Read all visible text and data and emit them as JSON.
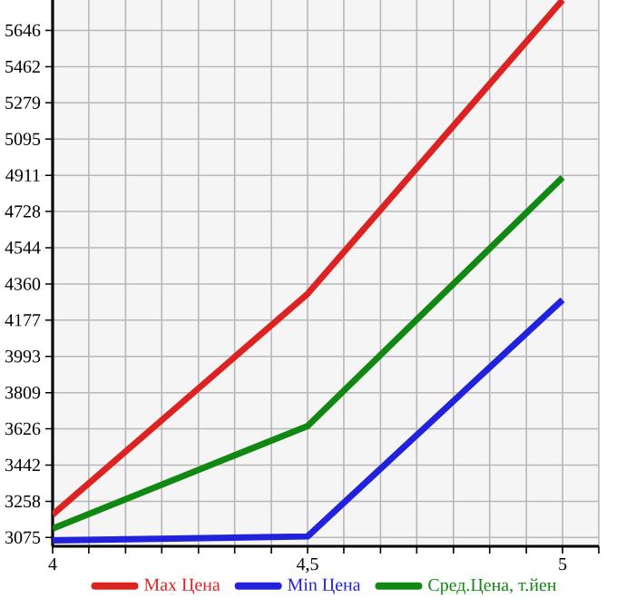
{
  "chart_data": {
    "type": "line",
    "x": [
      4,
      4.5,
      5
    ],
    "series": [
      {
        "name": "Max Цена",
        "color": "#dd2222",
        "values": [
          3190,
          4310,
          5800
        ]
      },
      {
        "name": "Min Цена",
        "color": "#2222dd",
        "values": [
          3060,
          3080,
          4280
        ]
      },
      {
        "name": "Сред.Цена, т.йен",
        "color": "#118811",
        "values": [
          3120,
          3640,
          4900
        ]
      }
    ],
    "xlim": [
      4,
      5.071
    ],
    "xticks": [
      4,
      {
        "value": 4.071,
        "label": null
      },
      {
        "value": 4.143,
        "label": null
      },
      {
        "value": 4.214,
        "label": null
      },
      {
        "value": 4.286,
        "label": null
      },
      {
        "value": 4.357,
        "label": null
      },
      {
        "value": 4.429,
        "label": null
      },
      {
        "value": 4.5,
        "label": "4,5"
      },
      {
        "value": 4.571,
        "label": null
      },
      {
        "value": 4.643,
        "label": null
      },
      {
        "value": 4.714,
        "label": null
      },
      {
        "value": 4.786,
        "label": null
      },
      {
        "value": 4.857,
        "label": null
      },
      {
        "value": 4.929,
        "label": null
      },
      5,
      {
        "value": 5.071,
        "label": null
      }
    ],
    "ylim": [
      3030,
      5800
    ],
    "yticks": [
      3075,
      3258,
      3442,
      3626,
      3809,
      3993,
      4177,
      4360,
      4544,
      4728,
      4911,
      5095,
      5279,
      5462,
      5646
    ],
    "grid": true,
    "legend": "bottom",
    "marker": "none",
    "line_style": "solid"
  }
}
